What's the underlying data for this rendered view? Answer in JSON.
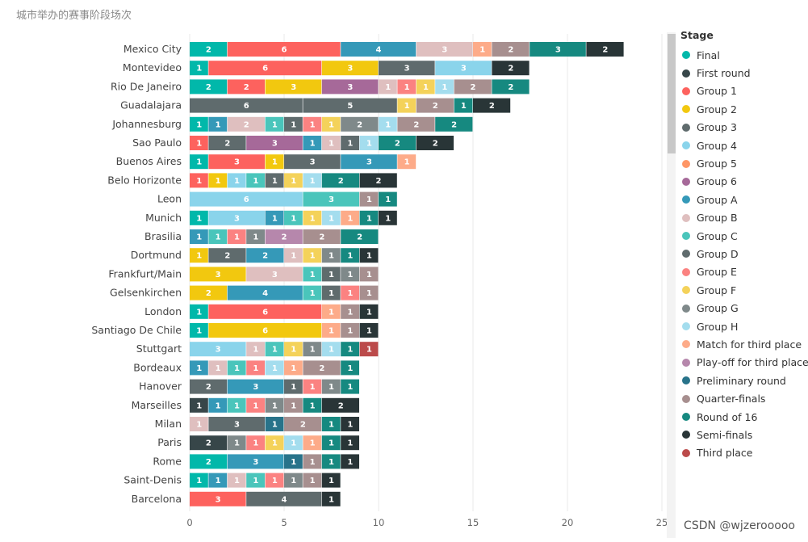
{
  "title": "城市举办的赛事阶段场次",
  "watermark": "CSDN @wjzerooooo",
  "legend": {
    "title": "Stage",
    "items": [
      {
        "name": "Final",
        "color": "#01B8AA"
      },
      {
        "name": "First round",
        "color": "#374649"
      },
      {
        "name": "Group 1",
        "color": "#FD625E"
      },
      {
        "name": "Group 2",
        "color": "#F2C80F"
      },
      {
        "name": "Group 3",
        "color": "#5F6B6D"
      },
      {
        "name": "Group 4",
        "color": "#8AD4EB"
      },
      {
        "name": "Group 5",
        "color": "#FE9666"
      },
      {
        "name": "Group 6",
        "color": "#A66999"
      },
      {
        "name": "Group A",
        "color": "#3599B8"
      },
      {
        "name": "Group B",
        "color": "#DFBFBF"
      },
      {
        "name": "Group C",
        "color": "#4AC5BB"
      },
      {
        "name": "Group D",
        "color": "#5F6B6D"
      },
      {
        "name": "Group E",
        "color": "#FB8281"
      },
      {
        "name": "Group F",
        "color": "#F4D25A"
      },
      {
        "name": "Group G",
        "color": "#7F898A"
      },
      {
        "name": "Group H",
        "color": "#A4DDEE"
      },
      {
        "name": "Match for third place",
        "color": "#FDAB89"
      },
      {
        "name": "Play-off for third place",
        "color": "#B687AC"
      },
      {
        "name": "Preliminary round",
        "color": "#28738A"
      },
      {
        "name": "Quarter-finals",
        "color": "#A78F8F"
      },
      {
        "name": "Round of 16",
        "color": "#168980"
      },
      {
        "name": "Semi-finals",
        "color": "#293537"
      },
      {
        "name": "Third place",
        "color": "#BB4A4A"
      }
    ]
  },
  "chart_data": {
    "type": "bar",
    "orientation": "horizontal",
    "stacked": true,
    "xlim": [
      0,
      25
    ],
    "xticks": [
      0,
      5,
      10,
      15,
      20,
      25
    ],
    "rows": [
      {
        "city": "Mexico City",
        "segments": [
          [
            "Final",
            2
          ],
          [
            "Group 1",
            6
          ],
          [
            "Group A",
            4
          ],
          [
            "Group B",
            3
          ],
          [
            "Match for third place",
            1
          ],
          [
            "Quarter-finals",
            2
          ],
          [
            "Round of 16",
            3
          ],
          [
            "Semi-finals",
            2
          ]
        ]
      },
      {
        "city": "Montevideo",
        "segments": [
          [
            "Final",
            1
          ],
          [
            "Group 1",
            6
          ],
          [
            "Group 2",
            3
          ],
          [
            "Group 3",
            3
          ],
          [
            "Group 4",
            3
          ],
          [
            "Semi-finals",
            2
          ]
        ]
      },
      {
        "city": "Rio De Janeiro",
        "segments": [
          [
            "Final",
            2
          ],
          [
            "Group 1",
            2
          ],
          [
            "Group 2",
            3
          ],
          [
            "Group 6",
            3
          ],
          [
            "Group B",
            1
          ],
          [
            "Group E",
            1
          ],
          [
            "Group F",
            1
          ],
          [
            "Group H",
            1
          ],
          [
            "Quarter-finals",
            2
          ],
          [
            "Round of 16",
            2
          ]
        ]
      },
      {
        "city": "Guadalajara",
        "segments": [
          [
            "Group 3",
            6
          ],
          [
            "Group D",
            5
          ],
          [
            "Group F",
            1
          ],
          [
            "Quarter-finals",
            2
          ],
          [
            "Round of 16",
            1
          ],
          [
            "Semi-finals",
            2
          ]
        ]
      },
      {
        "city": "Johannesburg",
        "segments": [
          [
            "Final",
            1
          ],
          [
            "Group A",
            1
          ],
          [
            "Group B",
            2
          ],
          [
            "Group C",
            1
          ],
          [
            "Group D",
            1
          ],
          [
            "Group E",
            1
          ],
          [
            "Group F",
            1
          ],
          [
            "Group G",
            2
          ],
          [
            "Group H",
            1
          ],
          [
            "Quarter-finals",
            2
          ],
          [
            "Round of 16",
            2
          ]
        ]
      },
      {
        "city": "Sao Paulo",
        "segments": [
          [
            "Group 1",
            1
          ],
          [
            "Group 3",
            2
          ],
          [
            "Group 6",
            3
          ],
          [
            "Group A",
            1
          ],
          [
            "Group B",
            1
          ],
          [
            "Group D",
            1
          ],
          [
            "Group H",
            1
          ],
          [
            "Round of 16",
            2
          ],
          [
            "Semi-finals",
            2
          ]
        ]
      },
      {
        "city": "Buenos Aires",
        "segments": [
          [
            "Final",
            1
          ],
          [
            "Group 1",
            3
          ],
          [
            "Group 2",
            1
          ],
          [
            "Group 3",
            3
          ],
          [
            "Group A",
            3
          ],
          [
            "Match for third place",
            1
          ]
        ]
      },
      {
        "city": "Belo Horizonte",
        "segments": [
          [
            "Group 1",
            1
          ],
          [
            "Group 2",
            1
          ],
          [
            "Group 4",
            1
          ],
          [
            "Group C",
            1
          ],
          [
            "Group D",
            1
          ],
          [
            "Group F",
            1
          ],
          [
            "Group H",
            1
          ],
          [
            "Round of 16",
            2
          ],
          [
            "Semi-finals",
            2
          ]
        ]
      },
      {
        "city": "Leon",
        "segments": [
          [
            "Group 4",
            6
          ],
          [
            "Group C",
            3
          ],
          [
            "Quarter-finals",
            1
          ],
          [
            "Round of 16",
            1
          ]
        ]
      },
      {
        "city": "Munich",
        "segments": [
          [
            "Final",
            1
          ],
          [
            "Group 4",
            3
          ],
          [
            "Group A",
            1
          ],
          [
            "Group C",
            1
          ],
          [
            "Group F",
            1
          ],
          [
            "Group H",
            1
          ],
          [
            "Match for third place",
            1
          ],
          [
            "Round of 16",
            1
          ],
          [
            "Semi-finals",
            1
          ]
        ]
      },
      {
        "city": "Brasilia",
        "segments": [
          [
            "Group A",
            1
          ],
          [
            "Group C",
            1
          ],
          [
            "Group E",
            1
          ],
          [
            "Group G",
            1
          ],
          [
            "Play-off for third place",
            2
          ],
          [
            "Quarter-finals",
            2
          ],
          [
            "Round of 16",
            2
          ]
        ]
      },
      {
        "city": "Dortmund",
        "segments": [
          [
            "Group 2",
            1
          ],
          [
            "Group 3",
            2
          ],
          [
            "Group A",
            2
          ],
          [
            "Group B",
            1
          ],
          [
            "Group F",
            1
          ],
          [
            "Group G",
            1
          ],
          [
            "Round of 16",
            1
          ],
          [
            "Semi-finals",
            1
          ]
        ]
      },
      {
        "city": "Frankfurt/Main",
        "segments": [
          [
            "Group 2",
            3
          ],
          [
            "Group B",
            3
          ],
          [
            "Group C",
            1
          ],
          [
            "Group D",
            1
          ],
          [
            "Group G",
            1
          ],
          [
            "Quarter-finals",
            1
          ]
        ]
      },
      {
        "city": "Gelsenkirchen",
        "segments": [
          [
            "Group 2",
            2
          ],
          [
            "Group A",
            4
          ],
          [
            "Group C",
            1
          ],
          [
            "Group D",
            1
          ],
          [
            "Group E",
            1
          ],
          [
            "Quarter-finals",
            1
          ]
        ]
      },
      {
        "city": "London",
        "segments": [
          [
            "Final",
            1
          ],
          [
            "Group 1",
            6
          ],
          [
            "Match for third place",
            1
          ],
          [
            "Quarter-finals",
            1
          ],
          [
            "Semi-finals",
            1
          ]
        ]
      },
      {
        "city": "Santiago De Chile",
        "segments": [
          [
            "Final",
            1
          ],
          [
            "Group 2",
            6
          ],
          [
            "Match for third place",
            1
          ],
          [
            "Quarter-finals",
            1
          ],
          [
            "Semi-finals",
            1
          ]
        ]
      },
      {
        "city": "Stuttgart",
        "segments": [
          [
            "Group 4",
            3
          ],
          [
            "Group B",
            1
          ],
          [
            "Group C",
            1
          ],
          [
            "Group F",
            1
          ],
          [
            "Group G",
            1
          ],
          [
            "Group H",
            1
          ],
          [
            "Round of 16",
            1
          ],
          [
            "Third place",
            1
          ]
        ]
      },
      {
        "city": "Bordeaux",
        "segments": [
          [
            "Group A",
            1
          ],
          [
            "Group B",
            1
          ],
          [
            "Group C",
            1
          ],
          [
            "Group E",
            1
          ],
          [
            "Group H",
            1
          ],
          [
            "Match for third place",
            1
          ],
          [
            "Quarter-finals",
            2
          ],
          [
            "Round of 16",
            1
          ]
        ]
      },
      {
        "city": "Hanover",
        "segments": [
          [
            "Group 3",
            2
          ],
          [
            "Group A",
            3
          ],
          [
            "Group D",
            1
          ],
          [
            "Group E",
            1
          ],
          [
            "Group G",
            1
          ],
          [
            "Round of 16",
            1
          ]
        ]
      },
      {
        "city": "Marseilles",
        "segments": [
          [
            "First round",
            1
          ],
          [
            "Group A",
            1
          ],
          [
            "Group C",
            1
          ],
          [
            "Group E",
            1
          ],
          [
            "Group G",
            1
          ],
          [
            "Quarter-finals",
            1
          ],
          [
            "Round of 16",
            1
          ],
          [
            "Semi-finals",
            2
          ]
        ]
      },
      {
        "city": "Milan",
        "segments": [
          [
            "Group B",
            1
          ],
          [
            "Group 3",
            3
          ],
          [
            "Preliminary round",
            1
          ],
          [
            "Quarter-finals",
            2
          ],
          [
            "Round of 16",
            1
          ],
          [
            "Semi-finals",
            1
          ]
        ]
      },
      {
        "city": "Paris",
        "segments": [
          [
            "First round",
            2
          ],
          [
            "Group G",
            1
          ],
          [
            "Group E",
            1
          ],
          [
            "Group F",
            1
          ],
          [
            "Group H",
            1
          ],
          [
            "Match for third place",
            1
          ],
          [
            "Round of 16",
            1
          ],
          [
            "Semi-finals",
            1
          ]
        ]
      },
      {
        "city": "Rome",
        "segments": [
          [
            "Final",
            2
          ],
          [
            "Group A",
            3
          ],
          [
            "Preliminary round",
            1
          ],
          [
            "Quarter-finals",
            1
          ],
          [
            "Round of 16",
            1
          ],
          [
            "Semi-finals",
            1
          ]
        ]
      },
      {
        "city": "Saint-Denis",
        "segments": [
          [
            "Final",
            1
          ],
          [
            "Group A",
            1
          ],
          [
            "Group B",
            1
          ],
          [
            "Group C",
            1
          ],
          [
            "Group E",
            1
          ],
          [
            "Group G",
            1
          ],
          [
            "Quarter-finals",
            1
          ],
          [
            "Semi-finals",
            1
          ]
        ]
      },
      {
        "city": "Barcelona",
        "segments": [
          [
            "Group 1",
            3
          ],
          [
            "Group 3",
            4
          ],
          [
            "Semi-finals",
            1
          ]
        ]
      }
    ]
  }
}
